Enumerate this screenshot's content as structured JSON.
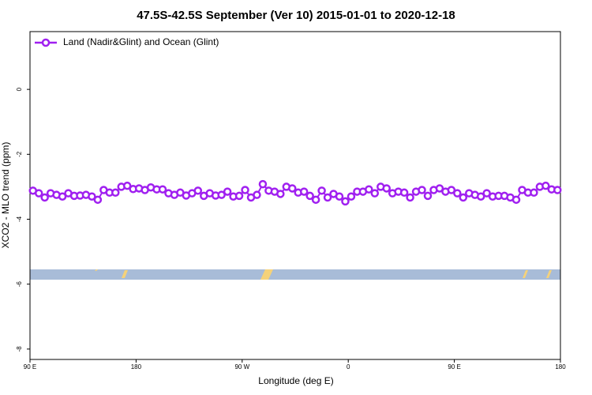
{
  "chart_data": {
    "type": "line",
    "title": "47.5S-42.5S September (Ver 10)   2015-01-01 to 2020-12-18",
    "x_label": "Longitude (deg E)",
    "y_label": "XCO2 - MLO trend (ppm)",
    "xlim": [
      90,
      540
    ],
    "ylim": [
      -8.32,
      1.78
    ],
    "xticks": [
      {
        "value": 90,
        "label": "90 E"
      },
      180,
      {
        "value": 270,
        "label": "90 W"
      },
      {
        "value": 360,
        "label": "0"
      },
      {
        "value": 450,
        "label": "90 E"
      },
      {
        "value": 540,
        "label": "180"
      }
    ],
    "yticks": [
      -8,
      -6,
      -4,
      -2,
      0
    ],
    "legend_position": "top-left",
    "x": [
      92.5,
      97.5,
      102.5,
      107.5,
      112.5,
      117.5,
      122.5,
      127.5,
      132.5,
      137.5,
      142.5,
      147.5,
      152.5,
      157.5,
      162.5,
      167.5,
      172.5,
      177.5,
      182.5,
      187.5,
      192.5,
      197.5,
      202.5,
      207.5,
      212.5,
      217.5,
      222.5,
      227.5,
      232.5,
      237.5,
      242.5,
      247.5,
      252.5,
      257.5,
      262.5,
      267.5,
      272.5,
      277.5,
      282.5,
      287.5,
      292.5,
      297.5,
      302.5,
      307.5,
      312.5,
      317.5,
      322.5,
      327.5,
      332.5,
      337.5,
      342.5,
      347.5,
      352.5,
      357.5,
      362.5,
      367.5,
      372.5,
      377.5,
      382.5,
      387.5,
      392.5,
      397.5,
      402.5,
      407.5,
      412.5,
      417.5,
      422.5,
      427.5,
      432.5,
      437.5,
      442.5,
      447.5,
      452.5,
      457.5,
      462.5,
      467.5,
      472.5,
      477.5,
      482.5,
      487.5,
      492.5,
      497.5,
      502.5,
      507.5,
      512.5,
      517.5,
      522.5,
      527.5,
      532.5,
      537.5
    ],
    "series": [
      {
        "name": "Land (Nadir&Glint) and Ocean (Glint)",
        "color": "#a020f0",
        "values": [
          -3.12,
          -3.2,
          -3.33,
          -3.2,
          -3.25,
          -3.3,
          -3.2,
          -3.28,
          -3.27,
          -3.25,
          -3.3,
          -3.4,
          -3.1,
          -3.18,
          -3.18,
          -3.0,
          -2.97,
          -3.07,
          -3.05,
          -3.1,
          -3.02,
          -3.08,
          -3.08,
          -3.2,
          -3.25,
          -3.18,
          -3.27,
          -3.2,
          -3.12,
          -3.28,
          -3.2,
          -3.27,
          -3.25,
          -3.15,
          -3.3,
          -3.28,
          -3.1,
          -3.33,
          -3.25,
          -2.92,
          -3.12,
          -3.15,
          -3.22,
          -3.0,
          -3.05,
          -3.18,
          -3.15,
          -3.28,
          -3.4,
          -3.12,
          -3.33,
          -3.22,
          -3.3,
          -3.45,
          -3.3,
          -3.15,
          -3.15,
          -3.08,
          -3.2,
          -3.0,
          -3.05,
          -3.2,
          -3.15,
          -3.18,
          -3.33,
          -3.15,
          -3.1,
          -3.28,
          -3.1,
          -3.05,
          -3.15,
          -3.1,
          -3.2,
          -3.33,
          -3.2,
          -3.25,
          -3.3,
          -3.2,
          -3.3,
          -3.28,
          -3.28,
          -3.33,
          -3.4,
          -3.1,
          -3.18,
          -3.18,
          -3.0,
          -2.97,
          -3.08,
          -3.1
        ]
      }
    ]
  }
}
